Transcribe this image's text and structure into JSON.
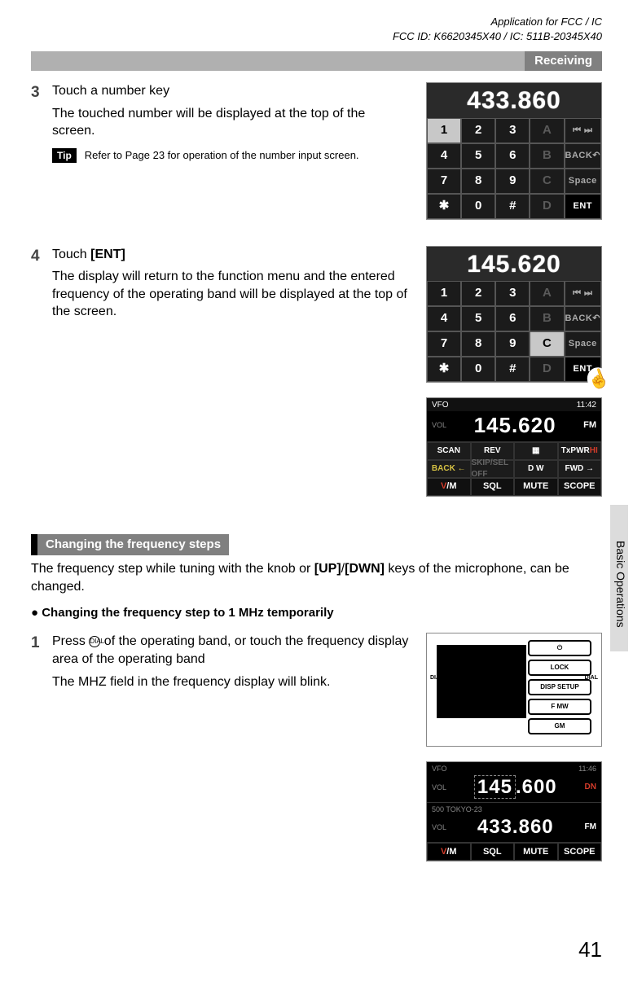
{
  "meta": {
    "line1": "Application for FCC / IC",
    "line2": "FCC ID: K6620345X40 / IC: 511B-20345X40"
  },
  "section_title": "Receiving",
  "side_tab": "Basic Operations",
  "page_number": "41",
  "step3": {
    "num": "3",
    "title": "Touch a number key",
    "desc": "The touched number will be displayed at the top of the screen.",
    "tip_label": "Tip",
    "tip_text": "Refer to Page 23 for operation of the number input screen."
  },
  "step4": {
    "num": "4",
    "title_pre": "Touch ",
    "title_bold": "[ENT]",
    "desc": "The display will return to the function menu and the entered frequency of the operating band will be displayed at the top of the screen."
  },
  "heading2": "Changing the frequency steps",
  "para2_pre": "The frequency step while tuning with the knob or ",
  "para2_b1": "[UP]",
  "para2_mid": "/",
  "para2_b2": "[DWN]",
  "para2_post": " keys of the microphone, can be changed.",
  "sub_head": "● Changing the frequency step to 1 MHz temporarily",
  "step1b": {
    "num": "1",
    "line1_pre": "Press ",
    "line1_post": " of the operating band, or touch the frequency display area of the operating band",
    "line2": "The MHZ field in the frequency display will blink."
  },
  "keypad1": {
    "freq": "433.860",
    "rows": [
      [
        "1",
        "2",
        "3",
        "A",
        "⏮ ⏭"
      ],
      [
        "4",
        "5",
        "6",
        "B",
        "BACK↶"
      ],
      [
        "7",
        "8",
        "9",
        "C",
        "Space"
      ],
      [
        "✱",
        "0",
        "#",
        "D",
        "ENT"
      ]
    ],
    "highlight_idx": 0
  },
  "keypad2": {
    "freq": "145.620",
    "rows": [
      [
        "1",
        "2",
        "3",
        "A",
        "⏮ ⏭"
      ],
      [
        "4",
        "5",
        "6",
        "B",
        "BACK↶"
      ],
      [
        "7",
        "8",
        "9",
        "C",
        "Space"
      ],
      [
        "✱",
        "0",
        "#",
        "D",
        "ENT"
      ]
    ],
    "highlight_idx": 13
  },
  "vfo": {
    "label_vfo": "VFO",
    "time": "11:42",
    "vol": "VOL",
    "freq": "145.620",
    "mode": "FM",
    "mid": [
      "SCAN",
      "REV",
      "▦",
      "TxPWR HI",
      "BACK ←",
      "SKIP/SEL OFF",
      "D W",
      "FWD →"
    ],
    "bottom": [
      "V/M",
      "SQL",
      "MUTE",
      "SCOPE"
    ]
  },
  "panel": {
    "buttons": [
      "⏻",
      "LOCK",
      "DISP SETUP",
      "F MW",
      "GM"
    ],
    "dial_left": "DIAL",
    "dial_right": "DIAL"
  },
  "dual": {
    "top_label": "VFO",
    "time": "11:46",
    "band1_vol": "VOL",
    "band1_freq_a": "145",
    "band1_freq_b": ".600",
    "band1_right": "DN",
    "band2_meta": "500   TOKYO-23",
    "band2_vol": "VOL",
    "band2_freq": "433.860",
    "band2_mode": "FM",
    "bottom": [
      "V/M",
      "SQL",
      "MUTE",
      "SCOPE"
    ]
  }
}
